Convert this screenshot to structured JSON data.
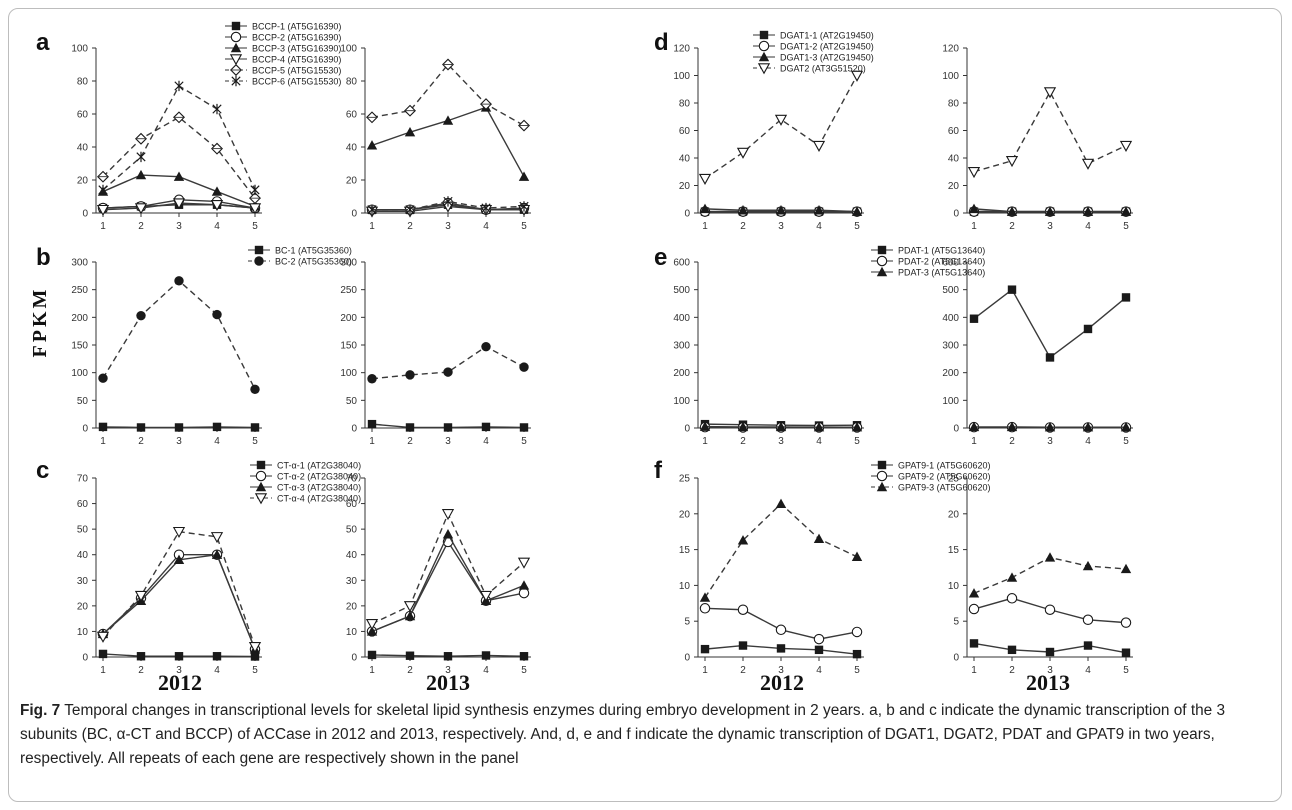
{
  "years": [
    "2012",
    "2013"
  ],
  "ylabel": "FPKM",
  "caption": {
    "label": "Fig. 7",
    "text": " Temporal changes in transcriptional levels for skeletal lipid synthesis enzymes during embryo development in 2 years. a, b and c indicate the dynamic transcription of the 3 subunits (BC, α-CT and BCCP) of ACCase in 2012 and 2013, respectively. And, d, e and f indicate the dynamic transcription of DGAT1, DGAT2, PDAT and GPAT9 in two years, respectively. All repeats of each gene are respectively shown in the panel"
  },
  "chart_data": [
    {
      "type": "line",
      "panel": "a",
      "year": "2012",
      "ylim": [
        0,
        100
      ],
      "yticks": [
        "0",
        "20",
        "40",
        "60",
        "80",
        "100"
      ],
      "categories": [
        "1",
        "2",
        "3",
        "4",
        "5"
      ],
      "series": [
        {
          "name": "BCCP-1 (AT5G16390)",
          "marker": "square-filled",
          "dashed": false,
          "values": [
            3,
            4,
            5,
            5,
            3
          ]
        },
        {
          "name": "BCCP-2 (AT5G16390)",
          "marker": "circle-open",
          "dashed": false,
          "values": [
            3,
            4,
            8,
            7,
            3
          ]
        },
        {
          "name": "BCCP-3 (AT5G16390)",
          "marker": "triangle-filled",
          "dashed": false,
          "values": [
            13,
            23,
            22,
            13,
            4
          ]
        },
        {
          "name": "BCCP-4 (AT5G16390)",
          "marker": "triangle-down-open",
          "dashed": false,
          "values": [
            2,
            3,
            6,
            5,
            3
          ]
        },
        {
          "name": "BCCP-5 (AT5G15530)",
          "marker": "diamond-open",
          "dashed": true,
          "values": [
            22,
            45,
            58,
            39,
            9
          ]
        },
        {
          "name": "BCCP-6 (AT5G15530)",
          "marker": "asterisk",
          "dashed": true,
          "values": [
            14,
            34,
            77,
            63,
            14
          ]
        }
      ]
    },
    {
      "type": "line",
      "panel": "a",
      "year": "2013",
      "ylim": [
        0,
        100
      ],
      "yticks": [
        "0",
        "20",
        "40",
        "60",
        "80",
        "100"
      ],
      "categories": [
        "1",
        "2",
        "3",
        "4",
        "5"
      ],
      "series": [
        {
          "name": "BCCP-1",
          "marker": "square-filled",
          "dashed": false,
          "values": [
            2,
            2,
            5,
            2,
            2
          ]
        },
        {
          "name": "BCCP-2",
          "marker": "circle-open",
          "dashed": false,
          "values": [
            2,
            2,
            6,
            2,
            3
          ]
        },
        {
          "name": "BCCP-3",
          "marker": "triangle-filled",
          "dashed": false,
          "values": [
            41,
            49,
            56,
            64,
            22
          ]
        },
        {
          "name": "BCCP-4",
          "marker": "triangle-down-open",
          "dashed": false,
          "values": [
            1,
            1,
            4,
            2,
            2
          ]
        },
        {
          "name": "BCCP-5",
          "marker": "diamond-open",
          "dashed": true,
          "values": [
            58,
            62,
            90,
            66,
            53
          ]
        },
        {
          "name": "BCCP-6",
          "marker": "asterisk",
          "dashed": true,
          "values": [
            2,
            2,
            7,
            3,
            4
          ]
        }
      ]
    },
    {
      "type": "line",
      "panel": "d",
      "year": "2012",
      "ylim": [
        0,
        120
      ],
      "yticks": [
        "0",
        "20",
        "40",
        "60",
        "80",
        "100",
        "120"
      ],
      "categories": [
        "1",
        "2",
        "3",
        "4",
        "5"
      ],
      "series": [
        {
          "name": "DGAT1-1 (AT2G19450)",
          "marker": "square-filled",
          "dashed": false,
          "values": [
            1,
            1,
            1,
            1,
            1
          ]
        },
        {
          "name": "DGAT1-2 (AT2G19450)",
          "marker": "circle-open",
          "dashed": false,
          "values": [
            1,
            1,
            1,
            1,
            1
          ]
        },
        {
          "name": "DGAT1-3 (AT2G19450)",
          "marker": "triangle-filled",
          "dashed": false,
          "values": [
            3,
            2,
            2,
            2,
            1
          ]
        },
        {
          "name": "DGAT2 (AT3G51520)",
          "marker": "triangle-down-open",
          "dashed": true,
          "values": [
            25,
            44,
            68,
            49,
            100
          ]
        }
      ]
    },
    {
      "type": "line",
      "panel": "d",
      "year": "2013",
      "ylim": [
        0,
        120
      ],
      "yticks": [
        "0",
        "20",
        "40",
        "60",
        "80",
        "100",
        "120"
      ],
      "categories": [
        "1",
        "2",
        "3",
        "4",
        "5"
      ],
      "series": [
        {
          "name": "DGAT1-1",
          "marker": "square-filled",
          "dashed": false,
          "values": [
            1,
            1,
            1,
            1,
            1
          ]
        },
        {
          "name": "DGAT1-2",
          "marker": "circle-open",
          "dashed": false,
          "values": [
            1,
            1,
            1,
            1,
            1
          ]
        },
        {
          "name": "DGAT1-3",
          "marker": "triangle-filled",
          "dashed": false,
          "values": [
            3,
            1,
            1,
            1,
            1
          ]
        },
        {
          "name": "DGAT2",
          "marker": "triangle-down-open",
          "dashed": true,
          "values": [
            30,
            38,
            88,
            36,
            49
          ]
        }
      ]
    },
    {
      "type": "line",
      "panel": "b",
      "year": "2012",
      "ylim": [
        0,
        300
      ],
      "yticks": [
        "0",
        "50",
        "100",
        "150",
        "200",
        "250",
        "300"
      ],
      "categories": [
        "1",
        "2",
        "3",
        "4",
        "5"
      ],
      "series": [
        {
          "name": "BC-1 (AT5G35360)",
          "marker": "square-filled",
          "dashed": false,
          "values": [
            2,
            1,
            1,
            2,
            1
          ]
        },
        {
          "name": "BC-2 (AT5G35360)",
          "marker": "circle-filled",
          "dashed": true,
          "values": [
            90,
            203,
            266,
            205,
            70
          ]
        }
      ]
    },
    {
      "type": "line",
      "panel": "b",
      "year": "2013",
      "ylim": [
        0,
        300
      ],
      "yticks": [
        "0",
        "50",
        "100",
        "150",
        "200",
        "250",
        "300"
      ],
      "categories": [
        "1",
        "2",
        "3",
        "4",
        "5"
      ],
      "series": [
        {
          "name": "BC-1",
          "marker": "square-filled",
          "dashed": false,
          "values": [
            7,
            1,
            1,
            2,
            1
          ]
        },
        {
          "name": "BC-2",
          "marker": "circle-filled",
          "dashed": true,
          "values": [
            89,
            96,
            101,
            147,
            110
          ]
        }
      ]
    },
    {
      "type": "line",
      "panel": "e",
      "year": "2012",
      "ylim": [
        0,
        600
      ],
      "yticks": [
        "0",
        "100",
        "200",
        "300",
        "400",
        "500",
        "600"
      ],
      "categories": [
        "1",
        "2",
        "3",
        "4",
        "5"
      ],
      "series": [
        {
          "name": "PDAT-1 (AT5G13640)",
          "marker": "square-filled",
          "dashed": false,
          "values": [
            14,
            12,
            10,
            9,
            10
          ]
        },
        {
          "name": "PDAT-2 (AT5G13640)",
          "marker": "circle-open",
          "dashed": false,
          "values": [
            3,
            2,
            2,
            2,
            2
          ]
        },
        {
          "name": "PDAT-3 (AT5G13640)",
          "marker": "triangle-filled",
          "dashed": false,
          "values": [
            5,
            4,
            4,
            3,
            3
          ]
        }
      ]
    },
    {
      "type": "line",
      "panel": "e",
      "year": "2013",
      "ylim": [
        0,
        600
      ],
      "yticks": [
        "0",
        "100",
        "200",
        "300",
        "400",
        "500",
        "600"
      ],
      "categories": [
        "1",
        "2",
        "3",
        "4",
        "5"
      ],
      "series": [
        {
          "name": "PDAT-1",
          "marker": "square-filled",
          "dashed": false,
          "values": [
            395,
            500,
            255,
            358,
            472
          ]
        },
        {
          "name": "PDAT-2",
          "marker": "circle-open",
          "dashed": false,
          "values": [
            3,
            3,
            2,
            2,
            2
          ]
        },
        {
          "name": "PDAT-3",
          "marker": "triangle-filled",
          "dashed": false,
          "values": [
            4,
            4,
            3,
            3,
            3
          ]
        }
      ]
    },
    {
      "type": "line",
      "panel": "c",
      "year": "2012",
      "ylim": [
        0,
        70
      ],
      "yticks": [
        "0",
        "10",
        "20",
        "30",
        "40",
        "50",
        "60",
        "70"
      ],
      "categories": [
        "1",
        "2",
        "3",
        "4",
        "5"
      ],
      "series": [
        {
          "name": "CT-α-1 (AT2G38040)",
          "marker": "square-filled",
          "dashed": false,
          "values": [
            1.2,
            0.3,
            0.3,
            0.3,
            0.2
          ]
        },
        {
          "name": "CT-α-2 (AT2G38040)",
          "marker": "circle-open",
          "dashed": false,
          "values": [
            9,
            23,
            40,
            40,
            3
          ]
        },
        {
          "name": "CT-α-3 (AT2G38040)",
          "marker": "triangle-filled",
          "dashed": false,
          "values": [
            9,
            22,
            38,
            40,
            3
          ]
        },
        {
          "name": "CT-α-4 (AT2G38040)",
          "marker": "triangle-down-open",
          "dashed": true,
          "values": [
            8,
            24,
            49,
            47,
            4
          ]
        }
      ]
    },
    {
      "type": "line",
      "panel": "c",
      "year": "2013",
      "ylim": [
        0,
        70
      ],
      "yticks": [
        "0",
        "10",
        "20",
        "30",
        "40",
        "50",
        "60",
        "70"
      ],
      "categories": [
        "1",
        "2",
        "3",
        "4",
        "5"
      ],
      "series": [
        {
          "name": "CT-α-1",
          "marker": "square-filled",
          "dashed": false,
          "values": [
            0.8,
            0.5,
            0.3,
            0.6,
            0.3
          ]
        },
        {
          "name": "CT-α-2",
          "marker": "circle-open",
          "dashed": false,
          "values": [
            10,
            16,
            45,
            22,
            25
          ]
        },
        {
          "name": "CT-α-3",
          "marker": "triangle-filled",
          "dashed": false,
          "values": [
            10,
            16,
            48,
            22,
            28
          ]
        },
        {
          "name": "CT-α-4",
          "marker": "triangle-down-open",
          "dashed": true,
          "values": [
            13,
            20,
            56,
            24,
            37
          ]
        }
      ]
    },
    {
      "type": "line",
      "panel": "f",
      "year": "2012",
      "ylim": [
        0,
        25
      ],
      "yticks": [
        "0",
        "5",
        "10",
        "15",
        "20",
        "25"
      ],
      "categories": [
        "1",
        "2",
        "3",
        "4",
        "5"
      ],
      "series": [
        {
          "name": "GPAT9-1 (AT5G60620)",
          "marker": "square-filled",
          "dashed": false,
          "values": [
            1.1,
            1.6,
            1.2,
            1.0,
            0.4
          ]
        },
        {
          "name": "GPAT9-2 (AT5G60620)",
          "marker": "circle-open",
          "dashed": false,
          "values": [
            6.8,
            6.6,
            3.8,
            2.5,
            3.5
          ]
        },
        {
          "name": "GPAT9-3 (AT5G60620)",
          "marker": "triangle-filled",
          "dashed": true,
          "values": [
            8.3,
            16.3,
            21.4,
            16.5,
            14.0
          ]
        }
      ]
    },
    {
      "type": "line",
      "panel": "f",
      "year": "2013",
      "ylim": [
        0,
        25
      ],
      "yticks": [
        "0",
        "5",
        "10",
        "15",
        "20",
        "25"
      ],
      "categories": [
        "1",
        "2",
        "3",
        "4",
        "5"
      ],
      "series": [
        {
          "name": "GPAT9-1",
          "marker": "square-filled",
          "dashed": false,
          "values": [
            1.9,
            1.0,
            0.7,
            1.6,
            0.6
          ]
        },
        {
          "name": "GPAT9-2",
          "marker": "circle-open",
          "dashed": false,
          "values": [
            6.7,
            8.2,
            6.6,
            5.2,
            4.8
          ]
        },
        {
          "name": "GPAT9-3",
          "marker": "triangle-filled",
          "dashed": true,
          "values": [
            8.9,
            11.1,
            13.9,
            12.7,
            12.3
          ]
        }
      ]
    }
  ]
}
